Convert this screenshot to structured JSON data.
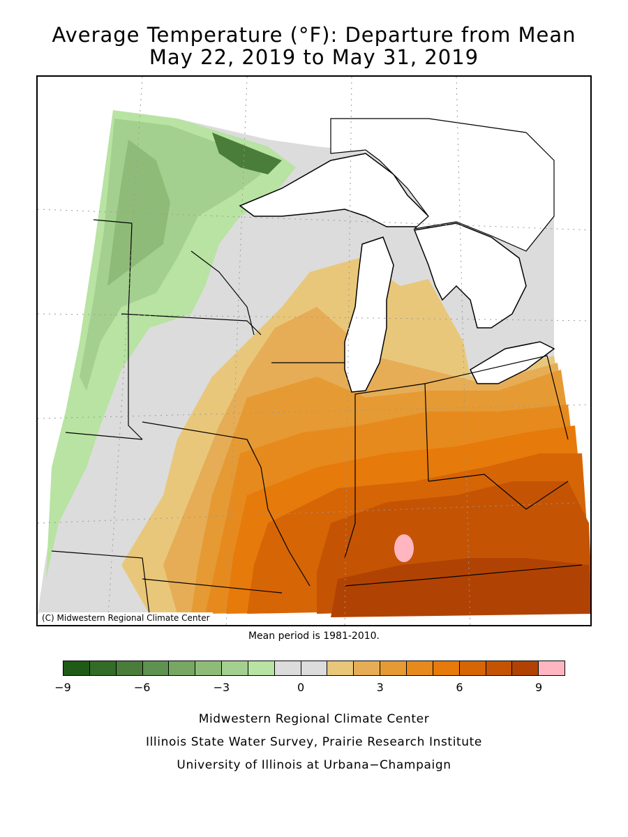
{
  "header": {
    "title_line1": "Average Temperature (°F): Departure from Mean",
    "title_line2": "May 22, 2019 to May 31, 2019"
  },
  "map": {
    "credit": "(C) Midwestern Regional Climate Center",
    "mean_period_note": "Mean period is 1981-2010."
  },
  "legend": {
    "colors": [
      "#1f5b16",
      "#336c26",
      "#4a7d3a",
      "#5f9150",
      "#78a763",
      "#8ebc78",
      "#a4d08f",
      "#b8e3a2",
      "#dcdcdc",
      "#dcdcdc",
      "#e9c77a",
      "#e6ad56",
      "#e59a33",
      "#e78a1d",
      "#e67a0a",
      "#d66506",
      "#c45404",
      "#b04303",
      "#ffb6c1"
    ],
    "tick_labels": [
      "−9",
      "−6",
      "−3",
      "0",
      "3",
      "6",
      "9"
    ]
  },
  "footer": {
    "line1": "Midwestern Regional Climate Center",
    "line2": "Illinois State Water Survey, Prairie Research Institute",
    "line3": "University of Illinois at Urbana−Champaign"
  }
}
